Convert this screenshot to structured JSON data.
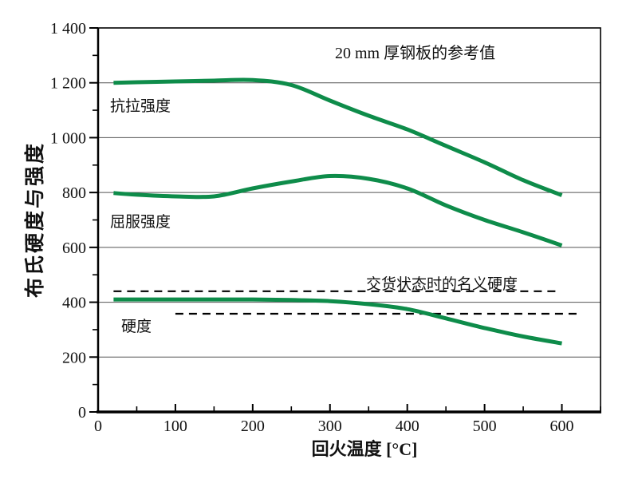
{
  "figure": {
    "background": "#ffffff",
    "text_color": "#111111"
  },
  "chart_data": {
    "type": "line",
    "note": "20 mm 厚钢板的参考值",
    "xlabel": "回火温度 [°C]",
    "ylabel": "布氏硬度与强度",
    "xlim": [
      0,
      650
    ],
    "ylim": [
      0,
      1400
    ],
    "grid": "horizontal-only",
    "legend_position": "inline-labels",
    "x_major_ticks": [
      0,
      100,
      200,
      300,
      400,
      500,
      600
    ],
    "x_tick_labels": [
      "0",
      "100",
      "200",
      "300",
      "400",
      "500",
      "600"
    ],
    "x_minor_ticks": [
      50,
      150,
      250,
      350,
      450,
      550,
      650
    ],
    "y_major_ticks": [
      0,
      200,
      400,
      600,
      800,
      1000,
      1200,
      1400
    ],
    "y_tick_labels": [
      "0",
      "200",
      "400",
      "600",
      "800",
      "1 000",
      "1 200",
      "1 400"
    ],
    "y_minor_ticks": [
      100,
      300,
      500,
      700,
      900,
      1100,
      1300
    ],
    "gridline_values": [
      200,
      400,
      600,
      800,
      1000,
      1200
    ],
    "line_color": "#0e8c4a",
    "axis_color": "#000000",
    "grid_color": "#555555",
    "reference_line_color": "#000000",
    "series": [
      {
        "name": "抗拉强度",
        "x": [
          20,
          50,
          100,
          150,
          200,
          250,
          300,
          350,
          400,
          450,
          500,
          550,
          600
        ],
        "values": [
          1200,
          1202,
          1205,
          1208,
          1210,
          1192,
          1135,
          1080,
          1030,
          970,
          910,
          845,
          790
        ]
      },
      {
        "name": "屈服强度",
        "x": [
          20,
          50,
          100,
          150,
          200,
          250,
          300,
          350,
          400,
          450,
          500,
          550,
          600
        ],
        "values": [
          798,
          792,
          786,
          786,
          815,
          840,
          860,
          850,
          815,
          753,
          700,
          655,
          607
        ]
      },
      {
        "name": "硬度",
        "x": [
          20,
          50,
          100,
          150,
          200,
          250,
          300,
          350,
          400,
          450,
          500,
          550,
          600
        ],
        "values": [
          410,
          410,
          410,
          410,
          410,
          408,
          404,
          393,
          375,
          341,
          306,
          275,
          250
        ]
      }
    ],
    "reference_lines": {
      "label": "交货状态时的名义硬度",
      "lines": [
        {
          "value": 440,
          "x_start": 20,
          "x_end": 598
        },
        {
          "value": 358,
          "x_start": 100,
          "x_end": 622
        }
      ]
    }
  }
}
